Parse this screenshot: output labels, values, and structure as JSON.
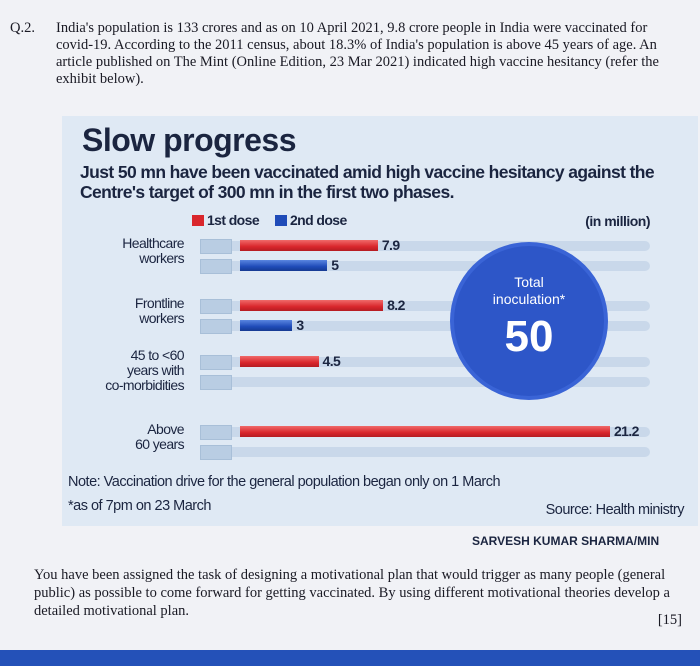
{
  "question": {
    "number": "Q.2.",
    "text": "India's population is 133 crores and as on 10 April 2021, 9.8 crore people in India were vaccinated for covid-19. According to the 2011 census, about 18.3% of India's population is above 45 years of age. An article published on The Mint (Online Edition, 23 Mar 2021) indicated high vaccine hesitancy (refer the exhibit below)."
  },
  "exhibit": {
    "title": "Slow progress",
    "subtitle": "Just 50 mn have been vaccinated amid high vaccine hesitancy against the Centre's target of 300 mn in the first two phases.",
    "legend": [
      "1st dose",
      "2nd dose"
    ],
    "unit": "(in million)",
    "badge": {
      "line1": "Total",
      "line2": "inoculation*",
      "value": "50"
    },
    "note": "Note: Vaccination drive for the general population began only on 1 March",
    "asof": "*as of 7pm on 23 March",
    "source": "Source: Health ministry",
    "byline": "SARVESH KUMAR SHARMA/MIN",
    "colors": {
      "first_dose": "#d9262c",
      "second_dose": "#1f4bb8",
      "badge": "#2d56c8"
    }
  },
  "chart_data": {
    "type": "bar",
    "title": "Slow progress",
    "categories": [
      "Healthcare workers",
      "Frontline workers",
      "45 to <60 years with co-morbidities",
      "Above 60 years"
    ],
    "series": [
      {
        "name": "1st dose",
        "values": [
          7.9,
          8.2,
          4.5,
          21.2
        ],
        "labels": [
          "7.9",
          "8.2",
          "4.5",
          "21.2"
        ]
      },
      {
        "name": "2nd dose",
        "values": [
          5,
          3,
          null,
          null
        ],
        "labels": [
          "5",
          "3",
          "",
          ""
        ]
      }
    ],
    "ylabel": "(in million)"
  },
  "task": {
    "text": "You have been assigned the task of designing a motivational plan that would trigger as many people (general public) as possible to come forward for getting vaccinated. By using different motivational theories develop a detailed motivational plan.",
    "marks": "[15]"
  }
}
